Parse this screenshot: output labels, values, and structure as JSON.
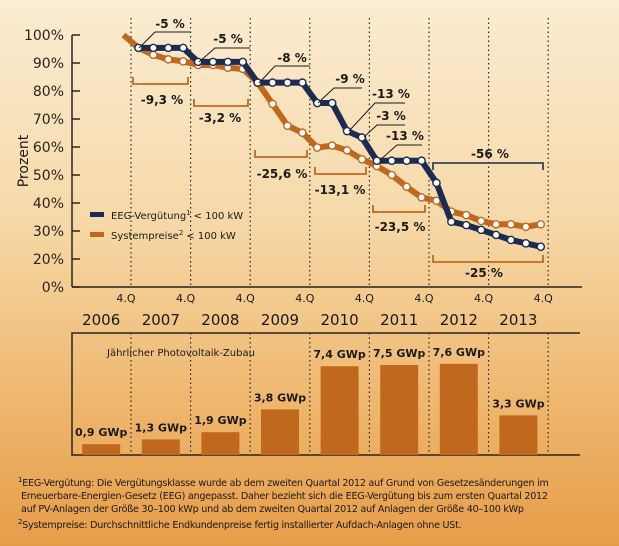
{
  "colors": {
    "eeg": "#1b2b52",
    "system": "#c0691e",
    "axis": "#2a2420",
    "bar": "#c0691e"
  },
  "chart_data": [
    {
      "type": "line",
      "ylabel": "Prozent",
      "ylim": [
        0,
        100
      ],
      "yticks": [
        "100%",
        "90%",
        "80%",
        "70%",
        "60%",
        "50%",
        "40%",
        "30%",
        "20%",
        "0%"
      ],
      "x_tick_label": "4.Q",
      "x_ticks": [
        2006,
        2007,
        2008,
        2009,
        2010,
        2011,
        2012,
        2013
      ],
      "years": [
        "2006",
        "2007",
        "2008",
        "2009",
        "2010",
        "2011",
        "2012",
        "2013"
      ],
      "grid": false,
      "legend_position": "middle-left",
      "series": [
        {
          "name": "EEG-Vergütung",
          "name_sup": "1",
          "name_suffix": "< 100 kW",
          "color": "#1b2b52",
          "points": [
            [
              "2007 Q1",
              95.4
            ],
            [
              "2007 Q2",
              95.4
            ],
            [
              "2007 Q3",
              95.4
            ],
            [
              "2007 Q4",
              95.4
            ],
            [
              "2008 Q1",
              90.4
            ],
            [
              "2008 Q2",
              90.4
            ],
            [
              "2008 Q3",
              90.4
            ],
            [
              "2008 Q4",
              90.4
            ],
            [
              "2009 Q1",
              83
            ],
            [
              "2009 Q2",
              83
            ],
            [
              "2009 Q3",
              83
            ],
            [
              "2009 Q4",
              83
            ],
            [
              "2010 Q1",
              75.7
            ],
            [
              "2010 Q2",
              75.7
            ],
            [
              "2010 Q3",
              65.7
            ],
            [
              "2010 Q4",
              63.4
            ],
            [
              "2011 Q1",
              55.1
            ],
            [
              "2011 Q2",
              55.1
            ],
            [
              "2011 Q3",
              55.1
            ],
            [
              "2011 Q4",
              55.1
            ],
            [
              "2012 Q1",
              47.2
            ],
            [
              "2012 Q2",
              33.3
            ],
            [
              "2012 Q3",
              32.1
            ],
            [
              "2012 Q4",
              30.4
            ],
            [
              "2013 Q1",
              28.6
            ],
            [
              "2013 Q2",
              26.8
            ],
            [
              "2013 Q3",
              25.6
            ],
            [
              "2013 Q4",
              24.4
            ]
          ]
        },
        {
          "name": "Systempreise",
          "name_sup": "2",
          "name_suffix": "< 100 kW",
          "color": "#c0691e",
          "start": [
            "2006 Q4",
            100
          ],
          "points": [
            [
              "2007 Q1",
              95.4
            ],
            [
              "2007 Q2",
              92.9
            ],
            [
              "2007 Q3",
              91.3
            ],
            [
              "2007 Q4",
              90.6
            ],
            [
              "2008 Q1",
              89.3
            ],
            [
              "2008 Q2",
              89.3
            ],
            [
              "2008 Q3",
              88.3
            ],
            [
              "2008 Q4",
              87.9
            ],
            [
              "2009 Q1",
              83
            ],
            [
              "2009 Q2",
              75.4
            ],
            [
              "2009 Q3",
              67.6
            ],
            [
              "2009 Q4",
              65.1
            ],
            [
              "2010 Q1",
              59.8
            ],
            [
              "2010 Q2",
              60.5
            ],
            [
              "2010 Q3",
              58.8
            ],
            [
              "2010 Q4",
              55.6
            ],
            [
              "2011 Q1",
              53.2
            ],
            [
              "2011 Q2",
              50
            ],
            [
              "2011 Q3",
              45.8
            ],
            [
              "2011 Q4",
              42
            ],
            [
              "2012 Q1",
              40.8
            ],
            [
              "2012 Q2",
              36.9
            ],
            [
              "2012 Q3",
              35.7
            ],
            [
              "2012 Q4",
              33.6
            ],
            [
              "2013 Q1",
              32.4
            ],
            [
              "2013 Q2",
              32.4
            ],
            [
              "2013 Q3",
              31.5
            ],
            [
              "2013 Q4",
              32.4
            ]
          ]
        }
      ],
      "annotations_eeg": [
        "-5 %",
        "-5 %",
        "-8 %",
        "-9 %",
        "-13 %",
        "-3 %",
        "-13 %",
        "-56 %"
      ],
      "annotations_system": [
        "-9,3 %",
        "-3,2 %",
        "-25,6 %",
        "-13,1 %",
        "-23,5 %",
        "-25 %"
      ]
    },
    {
      "type": "bar",
      "title": "Jährlicher Photovoltaik-Zubau",
      "categories": [
        "2006",
        "2007",
        "2008",
        "2009",
        "2010",
        "2011",
        "2012",
        "2013"
      ],
      "values": [
        0.9,
        1.3,
        1.9,
        3.8,
        7.4,
        7.5,
        7.6,
        3.3
      ],
      "labels": [
        "0,9 GWp",
        "1,3 GWp",
        "1,9 GWp",
        "3,8 GWp",
        "7,4 GWp",
        "7,5 GWp",
        "7,6 GWp",
        "3,3 GWp"
      ],
      "unit": "GWp"
    }
  ],
  "footnotes": {
    "fn1_mark": "1",
    "fn1_line1": "EEG-Vergütung: Die Vergütungsklasse wurde ab dem zweiten Quartal 2012 auf Grund von Gesetzesänderungen im",
    "fn1_line2": "Erneuerbare-Energien-Gesetz (EEG) angepasst. Daher bezieht sich die EEG-Vergütung bis zum ersten Quartal 2012",
    "fn1_line3": "auf PV-Anlagen der Größe 30–100 kWp und ab dem zweiten Quartal 2012 auf Anlagen der Größe 40–100 kWp",
    "fn2_mark": "2",
    "fn2_text": "Systempreise: Durchschnittliche Endkundenpreise fertig installierter Aufdach-Anlagen ohne USt."
  }
}
